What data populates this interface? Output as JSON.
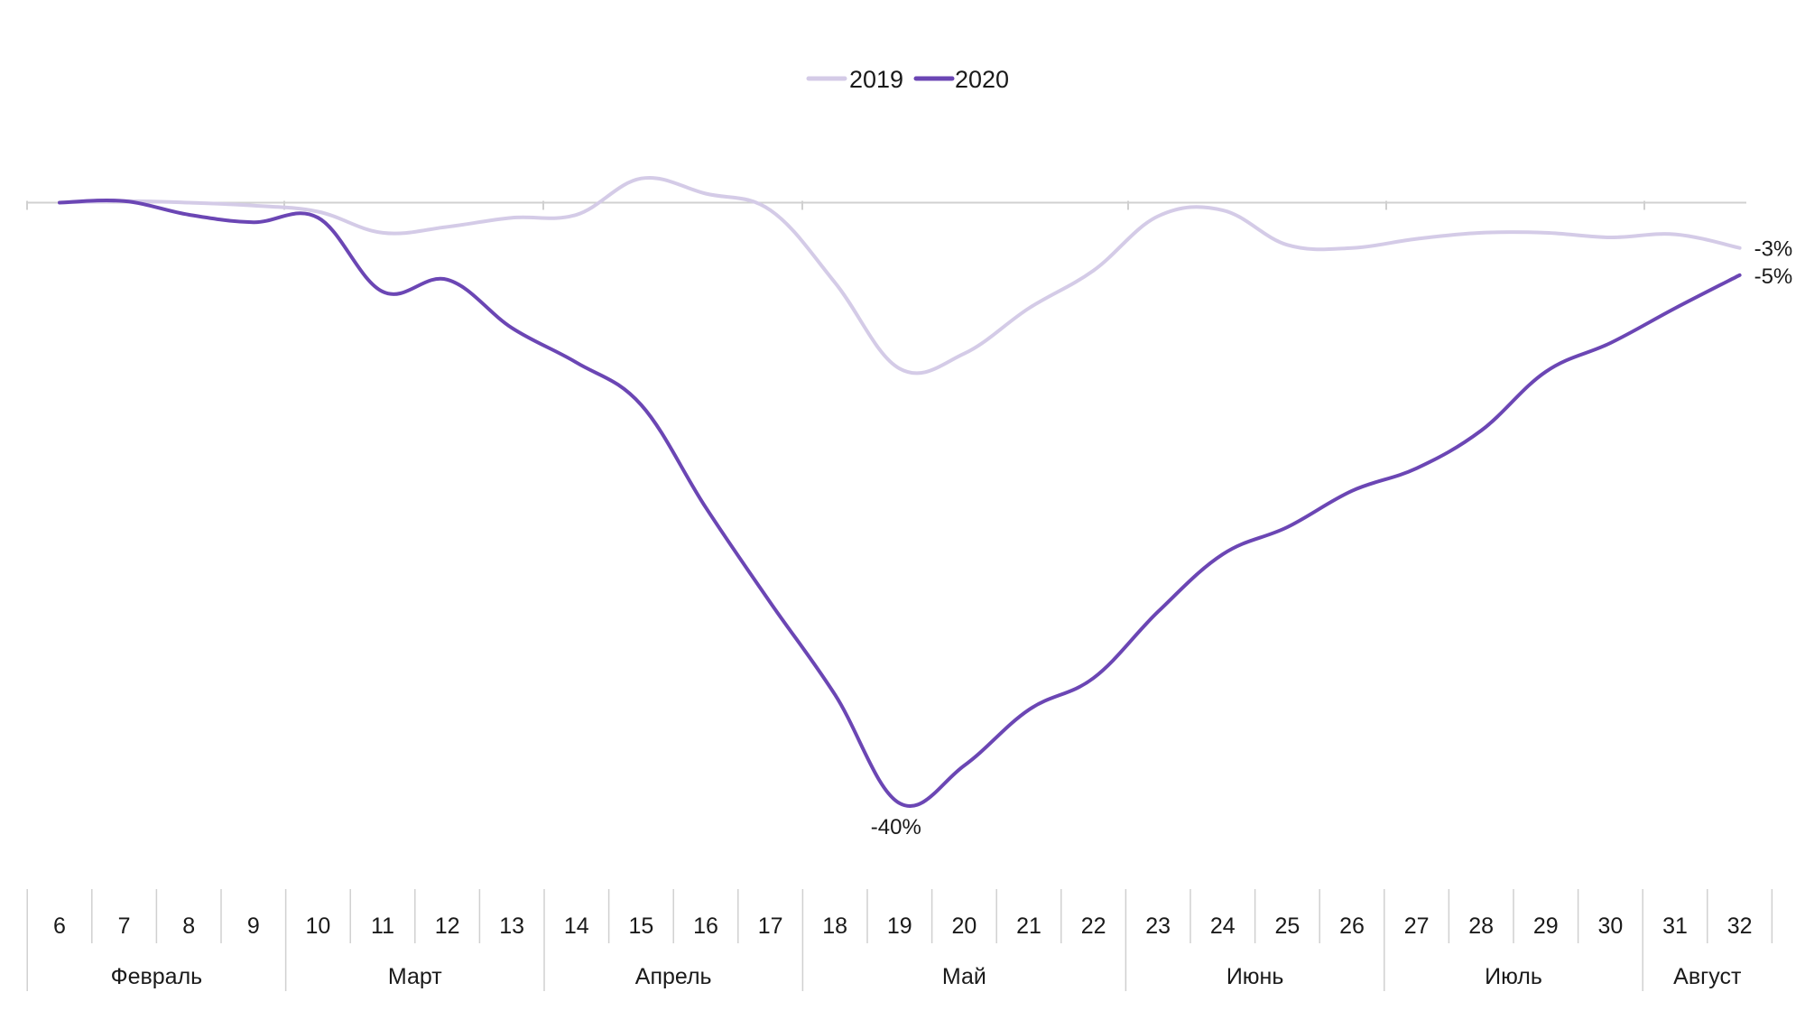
{
  "chart_data": {
    "type": "line",
    "title": "",
    "xlabel": "",
    "ylabel": "",
    "x": [
      6,
      7,
      8,
      9,
      10,
      11,
      12,
      13,
      14,
      15,
      16,
      17,
      18,
      19,
      20,
      21,
      22,
      23,
      24,
      25,
      26,
      27,
      28,
      29,
      30,
      31,
      32
    ],
    "months": [
      {
        "label": "Февраль",
        "weeks": 4
      },
      {
        "label": "Март",
        "weeks": 4
      },
      {
        "label": "Апрель",
        "weeks": 4
      },
      {
        "label": "Май",
        "weeks": 5
      },
      {
        "label": "Июнь",
        "weeks": 4
      },
      {
        "label": "Июль",
        "weeks": 4
      },
      {
        "label": "Август",
        "weeks": 2
      }
    ],
    "series": [
      {
        "name": "2019",
        "color": "#d4cbe7",
        "values": [
          0,
          0.1,
          0,
          -0.2,
          -0.6,
          -2.0,
          -1.6,
          -1.0,
          -0.8,
          1.6,
          0.6,
          -0.5,
          -5.3,
          -11.0,
          -10.0,
          -7.0,
          -4.5,
          -0.9,
          -0.5,
          -2.8,
          -3.0,
          -2.4,
          -2.0,
          -2.0,
          -2.3,
          -2.1,
          -3.0
        ],
        "end_label": "-3%"
      },
      {
        "name": "2020",
        "color": "#6b46b4",
        "values": [
          0,
          0.1,
          -0.8,
          -1.3,
          -1.0,
          -5.9,
          -5.1,
          -8.3,
          -10.6,
          -13.4,
          -20.2,
          -26.5,
          -32.6,
          -39.8,
          -37.3,
          -33.6,
          -31.5,
          -27.1,
          -23.3,
          -21.5,
          -19.1,
          -17.6,
          -15.1,
          -11.2,
          -9.3,
          -7.0,
          -4.8
        ],
        "end_label": "-5%",
        "min_label": "-40%"
      }
    ],
    "ylim": [
      -41,
      2
    ],
    "legend_position": "top-center",
    "grid": false
  }
}
